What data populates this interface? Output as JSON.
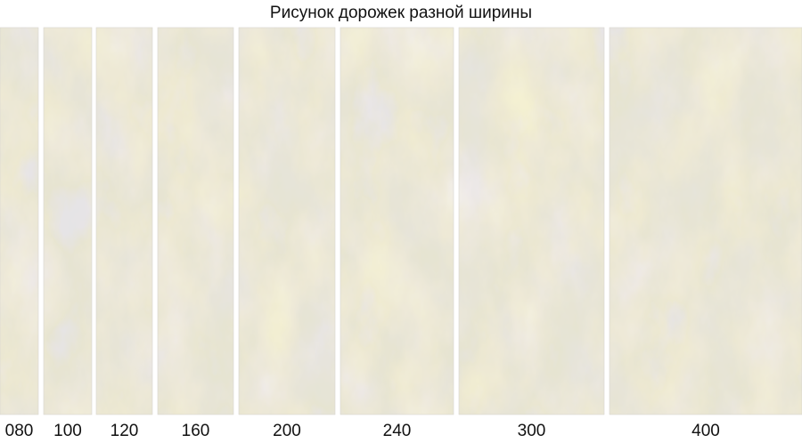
{
  "title": "Рисунок дорожек разной ширины",
  "runners": [
    {
      "label": "080"
    },
    {
      "label": "100"
    },
    {
      "label": "120"
    },
    {
      "label": "160"
    },
    {
      "label": "200"
    },
    {
      "label": "240"
    },
    {
      "label": "300"
    },
    {
      "label": "400"
    }
  ]
}
